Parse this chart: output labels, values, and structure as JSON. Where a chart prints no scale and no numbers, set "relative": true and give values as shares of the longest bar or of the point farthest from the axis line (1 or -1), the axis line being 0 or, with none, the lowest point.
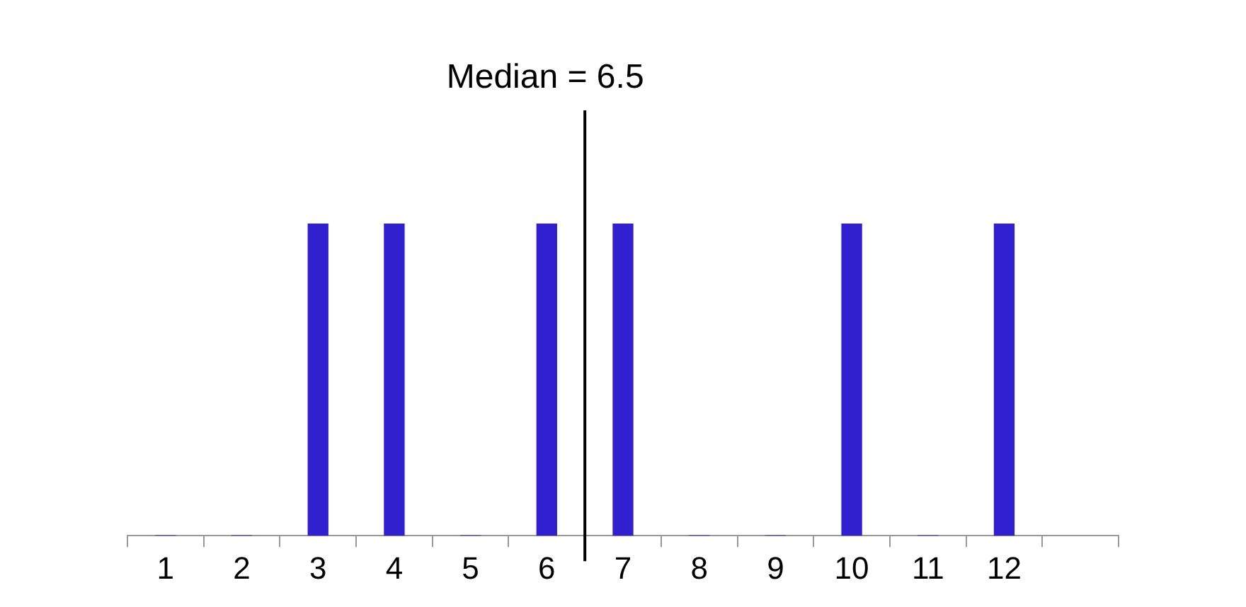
{
  "chart_data": {
    "type": "bar",
    "relative": true,
    "x": [
      1,
      2,
      3,
      4,
      5,
      6,
      7,
      8,
      9,
      10,
      11,
      12
    ],
    "values": [
      0,
      0,
      1,
      1,
      0,
      1,
      1,
      0,
      0,
      1,
      0,
      1
    ],
    "color": "#3020d0",
    "xlim": [
      0.5,
      13.5
    ],
    "xticks": [
      {
        "value": 0.5,
        "label": null
      },
      1,
      {
        "value": 1.5,
        "label": null
      },
      2,
      {
        "value": 2.5,
        "label": null
      },
      3,
      {
        "value": 3.5,
        "label": null
      },
      4,
      {
        "value": 4.5,
        "label": null
      },
      5,
      {
        "value": 5.5,
        "label": null
      },
      6,
      {
        "value": 6.5,
        "label": null
      },
      7,
      {
        "value": 7.5,
        "label": null
      },
      8,
      {
        "value": 8.5,
        "label": null
      },
      9,
      {
        "value": 9.5,
        "label": null
      },
      10,
      {
        "value": 10.5,
        "label": null
      },
      11,
      {
        "value": 11.5,
        "label": null
      },
      12,
      {
        "value": 12.5,
        "label": null
      },
      {
        "value": 13.5,
        "label": null
      }
    ],
    "ref_lines": [
      {
        "axis": "x",
        "value": 6.5,
        "label": "Median = 6.5",
        "color": "#000000"
      }
    ],
    "legend": false
  }
}
